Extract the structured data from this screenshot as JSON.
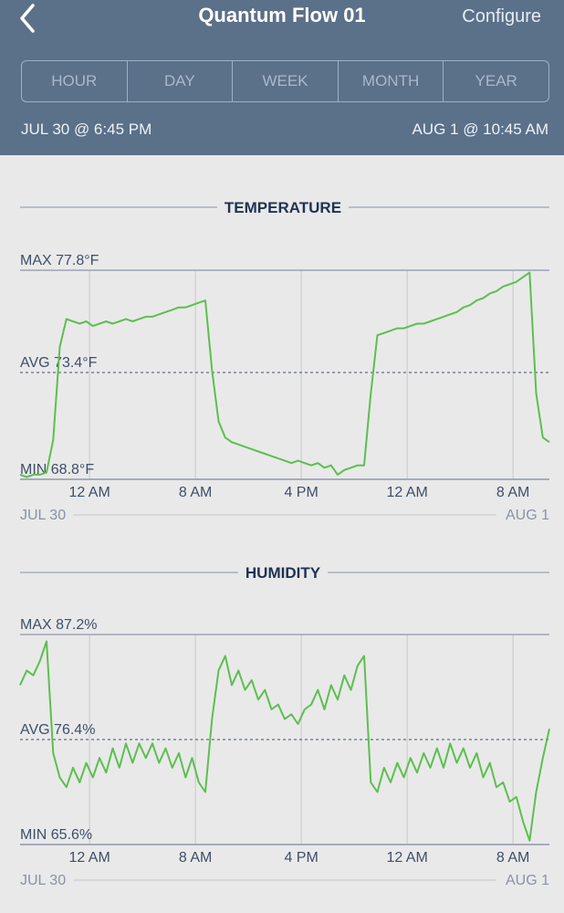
{
  "header": {
    "title": "Quantum Flow 01",
    "action": "Configure",
    "ranges": [
      "HOUR",
      "DAY",
      "WEEK",
      "MONTH",
      "YEAR"
    ],
    "start": "JUL 30 @ 6:45 PM",
    "end": "AUG 1 @ 10:45 AM"
  },
  "chart_data": [
    {
      "type": "line",
      "title": "TEMPERATURE",
      "color": "#5cbf4f",
      "start_label": "JUL 30",
      "end_label": "AUG 1",
      "x": [
        0,
        0.5,
        1,
        1.5,
        2,
        2.5,
        3,
        3.5,
        4,
        4.5,
        5,
        5.5,
        6,
        6.5,
        7,
        7.5,
        8,
        8.5,
        9,
        9.5,
        10,
        10.5,
        11,
        11.5,
        12,
        12.5,
        13,
        13.5,
        14,
        14.5,
        15,
        15.5,
        16,
        16.5,
        17,
        17.5,
        18,
        18.5,
        19,
        19.5,
        20,
        20.5,
        21,
        21.5,
        22,
        22.5,
        23,
        23.5,
        24,
        24.5,
        25,
        25.5,
        26,
        26.5,
        27,
        27.5,
        28,
        28.5,
        29,
        29.5,
        30,
        30.5,
        31,
        31.5,
        32,
        32.5,
        33,
        33.5,
        34,
        34.5,
        35,
        35.5,
        36,
        36.5,
        37,
        37.5,
        38,
        38.5,
        39,
        39.5,
        40
      ],
      "values": [
        69.0,
        68.9,
        69.0,
        69.0,
        69.1,
        70.5,
        74.5,
        75.7,
        75.6,
        75.5,
        75.6,
        75.4,
        75.5,
        75.6,
        75.5,
        75.6,
        75.7,
        75.6,
        75.7,
        75.8,
        75.8,
        75.9,
        76.0,
        76.1,
        76.2,
        76.2,
        76.3,
        76.4,
        76.5,
        73.5,
        71.3,
        70.6,
        70.4,
        70.3,
        70.2,
        70.1,
        70.0,
        69.9,
        69.8,
        69.7,
        69.6,
        69.5,
        69.6,
        69.5,
        69.4,
        69.5,
        69.3,
        69.4,
        69.0,
        69.2,
        69.3,
        69.4,
        69.4,
        72.5,
        75.0,
        75.1,
        75.2,
        75.3,
        75.3,
        75.4,
        75.5,
        75.5,
        75.6,
        75.7,
        75.8,
        75.9,
        76.0,
        76.2,
        76.3,
        76.5,
        76.6,
        76.8,
        76.9,
        77.1,
        77.2,
        77.3,
        77.5,
        77.7,
        72.5,
        70.6,
        70.4
      ],
      "xlim": [
        0,
        40
      ],
      "xticks": [
        {
          "value": 5.25,
          "label": "12 AM"
        },
        {
          "value": 13.25,
          "label": "8 AM"
        },
        {
          "value": 21.25,
          "label": "4 PM"
        },
        {
          "value": 29.25,
          "label": "12 AM"
        },
        {
          "value": 37.25,
          "label": "8 AM"
        }
      ],
      "ylim": [
        68.8,
        77.8
      ],
      "yticks": [
        {
          "value": 68.8,
          "label": "MIN 68.8°F"
        },
        {
          "value": 73.4,
          "label": "AVG 73.4°F"
        },
        {
          "value": 77.8,
          "label": "MAX 77.8°F"
        }
      ],
      "grid": true
    },
    {
      "type": "line",
      "title": "HUMIDITY",
      "color": "#5cbf4f",
      "start_label": "JUL 30",
      "end_label": "AUG 1",
      "x": [
        0,
        0.5,
        1,
        1.5,
        2,
        2.5,
        3,
        3.5,
        4,
        4.5,
        5,
        5.5,
        6,
        6.5,
        7,
        7.5,
        8,
        8.5,
        9,
        9.5,
        10,
        10.5,
        11,
        11.5,
        12,
        12.5,
        13,
        13.5,
        14,
        14.5,
        15,
        15.5,
        16,
        16.5,
        17,
        17.5,
        18,
        18.5,
        19,
        19.5,
        20,
        20.5,
        21,
        21.5,
        22,
        22.5,
        23,
        23.5,
        24,
        24.5,
        25,
        25.5,
        26,
        26.5,
        27,
        27.5,
        28,
        28.5,
        29,
        29.5,
        30,
        30.5,
        31,
        31.5,
        32,
        32.5,
        33,
        33.5,
        34,
        34.5,
        35,
        35.5,
        36,
        36.5,
        37,
        37.5,
        38,
        38.5,
        39,
        39.5,
        40
      ],
      "values": [
        82.0,
        83.5,
        83.0,
        84.5,
        86.5,
        75.0,
        72.5,
        71.5,
        73.5,
        72.0,
        74.0,
        72.5,
        74.5,
        73.0,
        75.5,
        73.5,
        76.0,
        74.0,
        76.0,
        74.5,
        76.0,
        74.0,
        75.5,
        73.5,
        75.0,
        72.5,
        74.5,
        72.0,
        71.0,
        78.5,
        83.5,
        85.0,
        82.0,
        83.5,
        81.5,
        82.5,
        80.5,
        81.5,
        79.5,
        80.0,
        78.5,
        79.0,
        78.0,
        79.5,
        80.0,
        81.5,
        79.5,
        82.0,
        80.5,
        83.0,
        81.5,
        84.0,
        85.0,
        72.0,
        71.0,
        73.5,
        72.0,
        74.0,
        72.5,
        74.5,
        73.0,
        75.0,
        73.5,
        75.5,
        73.5,
        76.0,
        74.0,
        75.5,
        73.5,
        75.0,
        72.5,
        74.0,
        71.5,
        72.0,
        70.0,
        70.5,
        68.0,
        66.0,
        71.0,
        74.5,
        77.5
      ],
      "xlim": [
        0,
        40
      ],
      "xticks": [
        {
          "value": 5.25,
          "label": "12 AM"
        },
        {
          "value": 13.25,
          "label": "8 AM"
        },
        {
          "value": 21.25,
          "label": "4 PM"
        },
        {
          "value": 29.25,
          "label": "12 AM"
        },
        {
          "value": 37.25,
          "label": "8 AM"
        }
      ],
      "ylim": [
        65.6,
        87.2
      ],
      "yticks": [
        {
          "value": 65.6,
          "label": "MIN 65.6%"
        },
        {
          "value": 76.4,
          "label": "AVG 76.4%"
        },
        {
          "value": 87.2,
          "label": "MAX 87.2%"
        }
      ],
      "grid": true
    }
  ]
}
